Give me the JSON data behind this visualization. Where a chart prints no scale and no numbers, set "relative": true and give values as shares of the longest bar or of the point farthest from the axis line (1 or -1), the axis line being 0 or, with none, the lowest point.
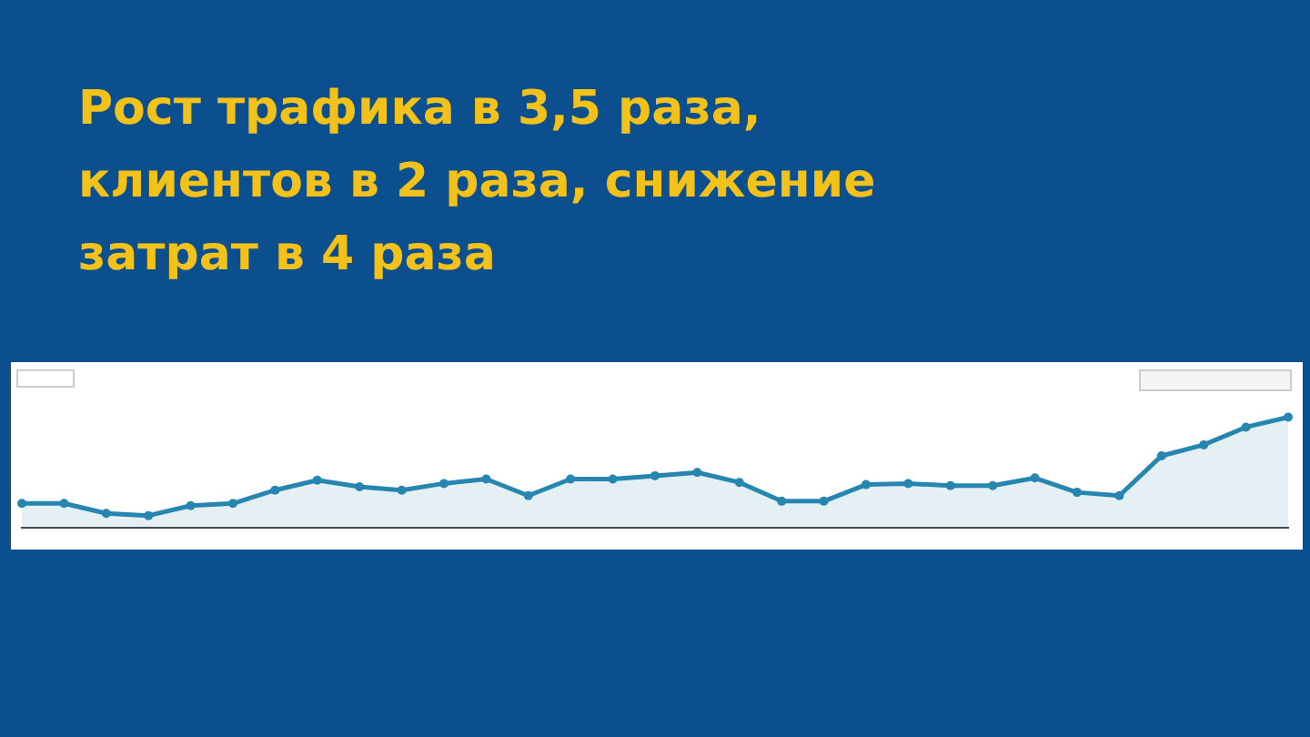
{
  "chart_data": {
    "type": "area",
    "title": "Рост трафика в 3,5 раза,\nклиентов в 2 раза, снижение\nзатрат в 4 раза",
    "relative": true,
    "marker": "circle",
    "categories": [
      null,
      null,
      null,
      null,
      null,
      null,
      null,
      null,
      null,
      null,
      null,
      null,
      null,
      null,
      null,
      null,
      null,
      null,
      null,
      null,
      null,
      null,
      null,
      null,
      null,
      null,
      null,
      null,
      null,
      null,
      null
    ],
    "series": [
      {
        "color": "#2686b0",
        "values": [
          0.22,
          0.22,
          0.13,
          0.11,
          0.2,
          0.22,
          0.34,
          0.43,
          0.37,
          0.34,
          0.4,
          0.44,
          0.29,
          0.44,
          0.44,
          0.47,
          0.5,
          0.41,
          0.24,
          0.24,
          0.39,
          0.4,
          0.38,
          0.38,
          0.45,
          0.32,
          0.29,
          0.65,
          0.75,
          0.91,
          1
        ]
      }
    ]
  }
}
